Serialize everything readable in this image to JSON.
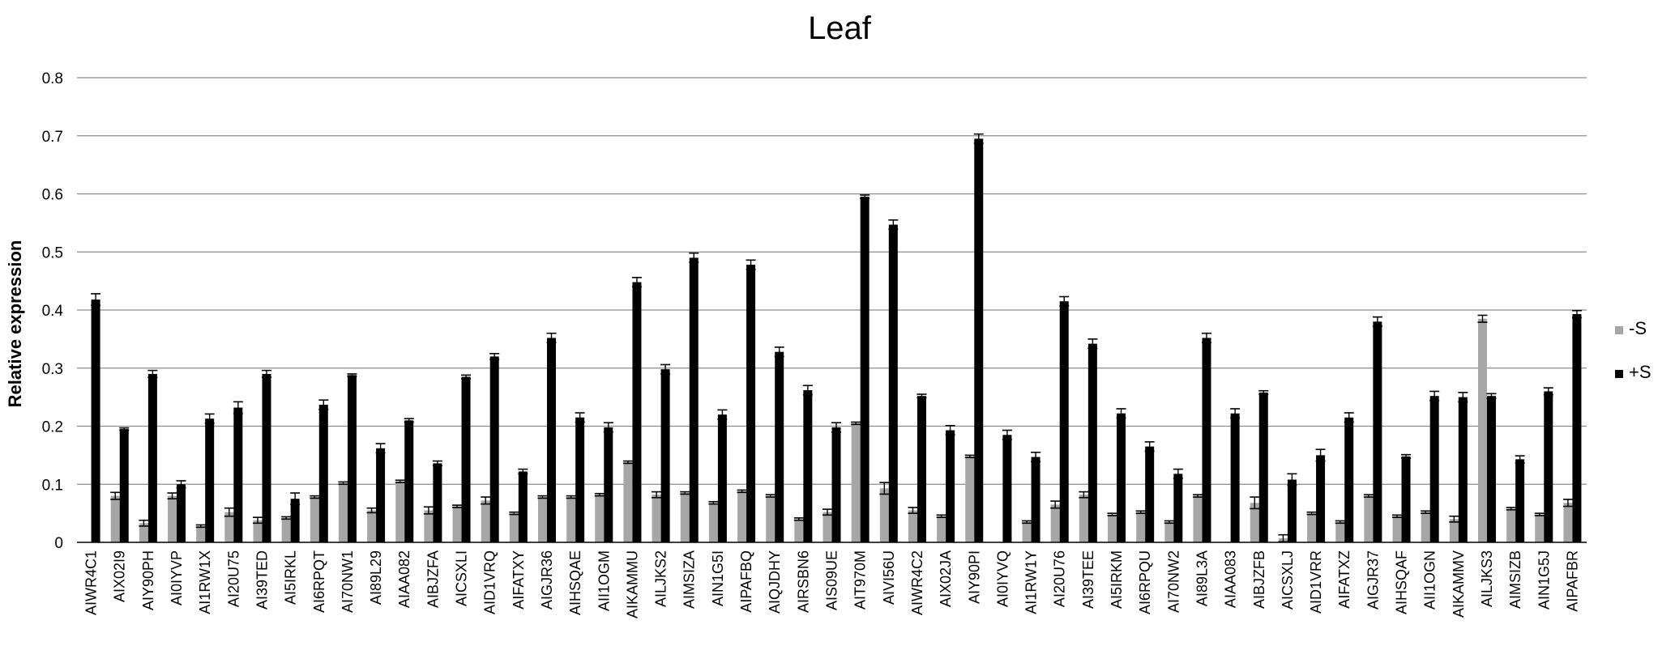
{
  "chart_data": {
    "type": "bar",
    "title": "Leaf",
    "xlabel": "",
    "ylabel": "Relative expression",
    "ylim": [
      0,
      0.8
    ],
    "yticks": [
      "0",
      "0.1",
      "0.2",
      "0.3",
      "0.4",
      "0.5",
      "0.6",
      "0.7",
      "0.8"
    ],
    "grid": true,
    "legend_position": "right",
    "categories": [
      "AIWR4C1",
      "AIX02I9",
      "AIY90PH",
      "AI0IYVP",
      "AI1RW1X",
      "AI20U75",
      "AI39TED",
      "AI5IRKL",
      "AI6RPQT",
      "AI70NW1",
      "AI89L29",
      "AIAA082",
      "AIBJZFA",
      "AICSXLI",
      "AID1VRQ",
      "AIFATXY",
      "AIGJR36",
      "AIHSQAE",
      "AII1OGM",
      "AIKAMMU",
      "AILJKS2",
      "AIMSIZA",
      "AIN1G5I",
      "AIPAFBQ",
      "AIQJDHY",
      "AIRSBN6",
      "AIS09UE",
      "AIT970M",
      "AIVI56U",
      "AIWR4C2",
      "AIX02JA",
      "AIY90PI",
      "AI0IYVQ",
      "AI1RW1Y",
      "AI20U76",
      "AI39TEE",
      "AI5IRKM",
      "AI6RPQU",
      "AI70NW2",
      "AI89L3A",
      "AIAA083",
      "AIBJZFB",
      "AICSXLJ",
      "AID1VRR",
      "AIFATXZ",
      "AIGJR37",
      "AIHSQAF",
      "AII1OGN",
      "AIKAMMV",
      "AILJKS3",
      "AIMSIZB",
      "AIN1G5J",
      "AIPAFBR"
    ],
    "series": [
      {
        "name": "-S",
        "color": "#a6a6a6",
        "values": [
          0,
          0.08,
          0.033,
          0.08,
          0.028,
          0.052,
          0.038,
          0.042,
          0.078,
          0.102,
          0.055,
          0.105,
          0.055,
          0.062,
          0.072,
          0.05,
          0.078,
          0.078,
          0.082,
          0.138,
          0.082,
          0.085,
          0.068,
          0.088,
          0.08,
          0.04,
          0.052,
          0.205,
          0.093,
          0.055,
          0.045,
          0.148,
          0,
          0.035,
          0.065,
          0.082,
          0.048,
          0.052,
          0.035,
          0.08,
          0,
          0.068,
          0.007,
          0.05,
          0.035,
          0.08,
          0.045,
          0.052,
          0.04,
          0.385,
          0.058,
          0.048,
          0.068
        ],
        "errors": [
          0,
          0.006,
          0.005,
          0.005,
          0.002,
          0.007,
          0.005,
          0.002,
          0.002,
          0.002,
          0.004,
          0.002,
          0.006,
          0.002,
          0.006,
          0.002,
          0.002,
          0.002,
          0.002,
          0.002,
          0.005,
          0.002,
          0.002,
          0.002,
          0.002,
          0.002,
          0.005,
          0.002,
          0.01,
          0.005,
          0.002,
          0.002,
          0,
          0.002,
          0.006,
          0.005,
          0.002,
          0.002,
          0.002,
          0.002,
          0,
          0.01,
          0.006,
          0.002,
          0.002,
          0.002,
          0.002,
          0.002,
          0.005,
          0.006,
          0.002,
          0.002,
          0.006
        ]
      },
      {
        "name": "+S",
        "color": "#000000",
        "values": [
          0.418,
          0.195,
          0.29,
          0.1,
          0.213,
          0.232,
          0.29,
          0.075,
          0.237,
          0.288,
          0.162,
          0.21,
          0.136,
          0.285,
          0.32,
          0.122,
          0.352,
          0.215,
          0.198,
          0.448,
          0.298,
          0.49,
          0.22,
          0.478,
          0.328,
          0.262,
          0.198,
          0.595,
          0.547,
          0.252,
          0.193,
          0.695,
          0.185,
          0.147,
          0.415,
          0.342,
          0.222,
          0.165,
          0.118,
          0.352,
          0.222,
          0.258,
          0.108,
          0.15,
          0.215,
          0.38,
          0.148,
          0.252,
          0.25,
          0.252,
          0.143,
          0.26,
          0.393
        ],
        "errors": [
          0.01,
          0.002,
          0.006,
          0.006,
          0.008,
          0.01,
          0.006,
          0.01,
          0.008,
          0.002,
          0.008,
          0.003,
          0.004,
          0.003,
          0.005,
          0.004,
          0.008,
          0.008,
          0.008,
          0.008,
          0.008,
          0.008,
          0.008,
          0.008,
          0.008,
          0.008,
          0.008,
          0.003,
          0.008,
          0.003,
          0.008,
          0.008,
          0.008,
          0.008,
          0.008,
          0.008,
          0.008,
          0.008,
          0.008,
          0.008,
          0.008,
          0.003,
          0.01,
          0.01,
          0.008,
          0.008,
          0.003,
          0.008,
          0.008,
          0.004,
          0.006,
          0.006,
          0.006
        ]
      }
    ]
  }
}
